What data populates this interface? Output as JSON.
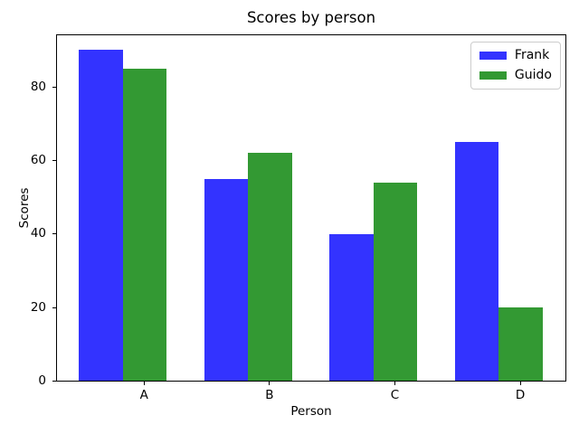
{
  "chart_data": {
    "type": "bar",
    "title": "Scores by person",
    "xlabel": "Person",
    "ylabel": "Scores",
    "categories": [
      "A",
      "B",
      "C",
      "D"
    ],
    "series": [
      {
        "name": "Frank",
        "color": "#3333ff",
        "values": [
          90,
          55,
          40,
          65
        ]
      },
      {
        "name": "Guido",
        "color": "#339933",
        "values": [
          85,
          62,
          54,
          20
        ]
      }
    ],
    "ylim": [
      0,
      94.5
    ],
    "yticks": [
      0,
      20,
      40,
      60,
      80
    ],
    "grid": false,
    "legend": {
      "position": "upper-right",
      "entries": [
        "Frank",
        "Guido"
      ]
    }
  }
}
